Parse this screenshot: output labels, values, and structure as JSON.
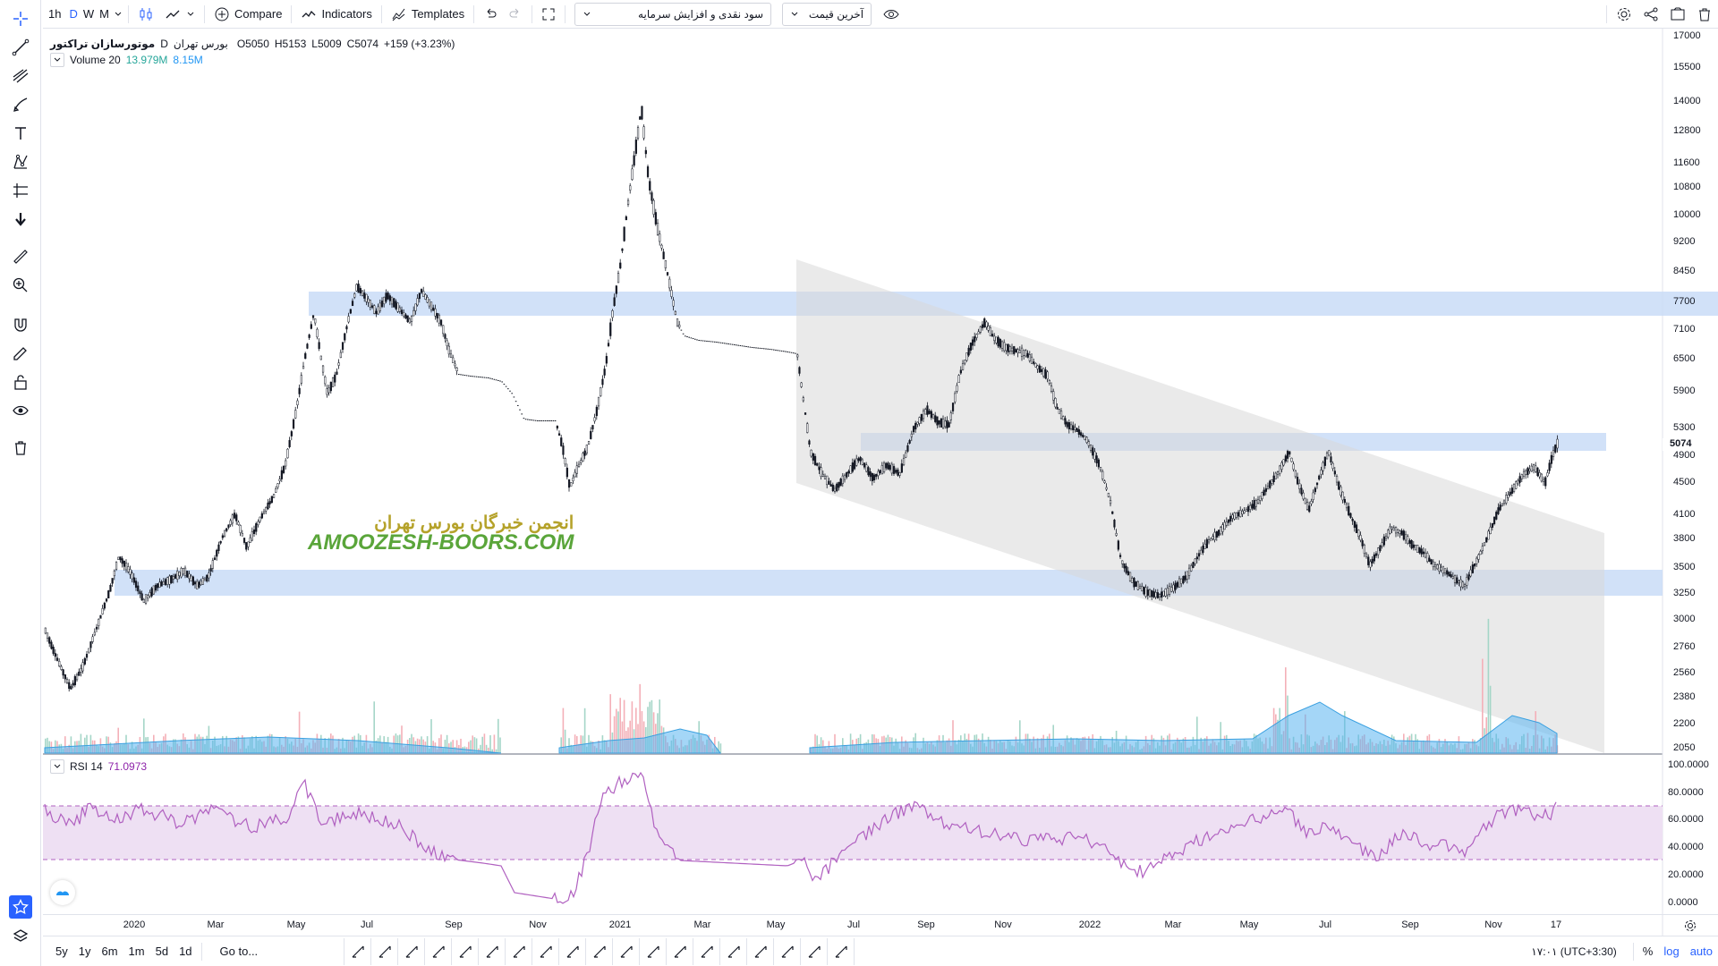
{
  "toolbar": {
    "intervals": [
      "1h",
      "D",
      "W",
      "M"
    ],
    "active_interval": "D",
    "compare_label": "Compare",
    "indicators_label": "Indicators",
    "templates_label": "Templates",
    "dropdown1_value": "سود نقدی و افزایش سرمایه",
    "dropdown2_value": "آخرین قیمت"
  },
  "legend": {
    "symbol": "موتورسازان تراکتور",
    "interval": "D",
    "exchange": "بورس تهران",
    "open_label": "O",
    "open_value": "5050",
    "high_label": "H",
    "high_value": "5153",
    "low_label": "L",
    "low_value": "5009",
    "close_label": "C",
    "close_value": "5074",
    "change": "+159 (+3.23%)",
    "volume_label": "Volume 20",
    "volume_value": "13.979M",
    "volume_ma": "8.15M"
  },
  "rsi": {
    "label": "RSI 14",
    "value": "71.0973",
    "axis_labels": [
      "100.0000",
      "80.0000",
      "60.0000",
      "40.0000",
      "20.0000",
      "0.0000"
    ]
  },
  "price_axis": {
    "labels": [
      "17000",
      "15500",
      "14000",
      "12800",
      "11600",
      "10800",
      "10000",
      "9200",
      "8450",
      "7700",
      "7100",
      "6500",
      "5900",
      "5300",
      "4900",
      "4500",
      "4100",
      "3800",
      "3500",
      "3250",
      "3000",
      "2760",
      "2560",
      "2380",
      "2200",
      "2050"
    ],
    "last_price": "5074"
  },
  "time_axis": {
    "labels": [
      "2020",
      "Mar",
      "May",
      "Jul",
      "Sep",
      "Nov",
      "2021",
      "Mar",
      "May",
      "Jul",
      "Sep",
      "Nov",
      "2022",
      "Mar",
      "May",
      "Jul",
      "Sep",
      "Nov",
      "17"
    ]
  },
  "bottom": {
    "ranges": [
      "5y",
      "1y",
      "6m",
      "1m",
      "5d",
      "1d"
    ],
    "goto_label": "Go to...",
    "clock": "۱۷:۰۱ (UTC+3:30)",
    "percent_label": "%",
    "log_label": "log",
    "auto_label": "auto"
  },
  "watermark": {
    "persian": "انجمن خبرگان بورس تهران",
    "english": "AMOOZESH-BOORS.COM"
  },
  "colors": {
    "up": "#26a69a",
    "down": "#131722",
    "accent": "#2962ff",
    "zone": "#c9dcf7",
    "rsi_line": "#b060c0",
    "rsi_band": "#eee0f3",
    "volume_ma": "#5ab4f0"
  }
}
